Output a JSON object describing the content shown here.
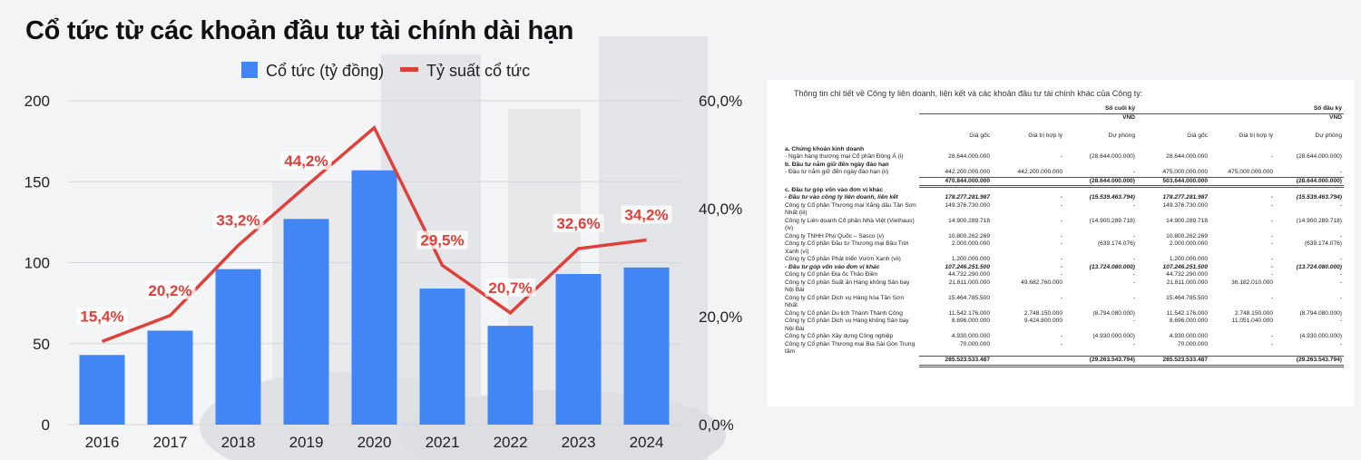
{
  "title": "Cổ tức từ các khoản đầu tư tài chính dài hạn",
  "legend": {
    "bar": "Cổ tức (tỷ đồng)",
    "line": "Tỷ suất cổ tức"
  },
  "colors": {
    "bar": "#4285f4",
    "line": "#e0403a",
    "label": "#e0403a"
  },
  "chart_data": {
    "type": "bar",
    "categories": [
      "2016",
      "2017",
      "2018",
      "2019",
      "2020",
      "2021",
      "2022",
      "2023",
      "2024"
    ],
    "series": [
      {
        "name": "Cổ tức (tỷ đồng)",
        "type": "bar",
        "axis": "left",
        "values": [
          43,
          58,
          96,
          127,
          157,
          84,
          61,
          93,
          97
        ]
      },
      {
        "name": "Tỷ suất cổ tức",
        "type": "line",
        "axis": "right",
        "values": [
          15.4,
          20.2,
          33.2,
          44.2,
          55.0,
          29.5,
          20.7,
          32.6,
          34.2
        ],
        "labels": [
          "15,4%",
          "20,2%",
          "33,2%",
          "44,2%",
          null,
          "29,5%",
          "20,7%",
          "32,6%",
          "34,2%"
        ]
      }
    ],
    "y_left": {
      "ylim": [
        0,
        200
      ],
      "ticks": [
        "0",
        "50",
        "100",
        "150",
        "200"
      ],
      "tick_values": [
        0,
        50,
        100,
        150,
        200
      ]
    },
    "y_right": {
      "ylim": [
        0,
        60
      ],
      "ticks": [
        "0,0%",
        "20,0%",
        "40,0%",
        "60,0%"
      ],
      "tick_values": [
        0,
        20,
        40,
        60
      ]
    },
    "legend_position": "top"
  },
  "doc": {
    "intro": "Thông tin chi tiết về Công ty liên doanh, liên kết và các khoản đầu tư tài chính khác của Công ty:",
    "period_end": "Số cuối kỳ",
    "period_start": "Số đầu kỳ",
    "unit": "VND",
    "col_cost": "Giá gốc",
    "col_fair": "Giá trị hợp lý",
    "col_prov": "Dự phòng",
    "rows": [
      {
        "label": "a. Chứng khoán kinh doanh",
        "style": "b",
        "v": [
          "",
          "",
          "",
          "",
          "",
          ""
        ]
      },
      {
        "label": "- Ngân hàng thương mại Cổ phần Đông Á (i)",
        "style": "",
        "v": [
          "28.644.000.000",
          "-",
          "(28.644.000.000)",
          "28.644.000.000",
          "-",
          "(28.644.000.000)"
        ]
      },
      {
        "label": "b. Đầu tư nắm giữ đến ngày đáo hạn",
        "style": "b",
        "v": [
          "",
          "",
          "",
          "",
          "",
          ""
        ]
      },
      {
        "label": "- Đầu tư nắm giữ đến ngày đáo hạn (ii)",
        "style": "",
        "v": [
          "442.200.000.000",
          "442.200.000.000",
          "-",
          "475.000.000.000",
          "475.000.000.000",
          "-"
        ]
      },
      {
        "label": "",
        "style": "tot",
        "v": [
          "470.844.000.000",
          "",
          "(28.644.000.000)",
          "503.644.000.000",
          "",
          "(28.644.000.000)"
        ]
      },
      {
        "label": "c. Đầu tư góp vốn vào đơn vị khác",
        "style": "b",
        "v": [
          "",
          "",
          "",
          "",
          "",
          ""
        ]
      },
      {
        "label": "- Đầu tư vào công ty liên doanh, liên kết",
        "style": "bi",
        "v": [
          "178.277.281.987",
          "-",
          "(15.539.463.794)",
          "178.277.281.987",
          "-",
          "(15.539.463.794)"
        ]
      },
      {
        "label": "Công ty Cổ phần Thương mại Xăng dầu Tân Sơn Nhất (iii)",
        "style": "",
        "v": [
          "149.376.730.000",
          "-",
          "-",
          "149.376.730.000",
          "-",
          "-"
        ]
      },
      {
        "label": "Công ty Liên doanh Cổ phần Nhà Việt (Viethaus) (iv)",
        "style": "",
        "v": [
          "14.900.289.718",
          "-",
          "(14.900.289.718)",
          "14.900.289.718",
          "-",
          "(14.900.289.718)"
        ]
      },
      {
        "label": "Công ty TNHH Phú Quốc – Sasco (v)",
        "style": "",
        "v": [
          "10.800.262.269",
          "-",
          "-",
          "10.800.262.269",
          "-",
          "-"
        ]
      },
      {
        "label": "Công ty Cổ phần Đầu tư Thương mại Bầu Trời Xanh (vi)",
        "style": "",
        "v": [
          "2.000.000.000",
          "-",
          "(639.174.076)",
          "2.000.000.000",
          "-",
          "(639.174.076)"
        ]
      },
      {
        "label": "Công ty Cổ phần Phát triển Vườn Xanh (vii)",
        "style": "",
        "v": [
          "1.200.000.000",
          "-",
          "-",
          "1.200.000.000",
          "-",
          "-"
        ]
      },
      {
        "label": "- Đầu tư góp vốn vào đơn vị khác",
        "style": "bi",
        "v": [
          "107.246.251.500",
          "-",
          "(13.724.080.000)",
          "107.246.251.500",
          "-",
          "(13.724.080.000)"
        ]
      },
      {
        "label": "Công ty Cổ phần Địa ốc Thảo Điền",
        "style": "",
        "v": [
          "44.732.290.000",
          "-",
          "-",
          "44.732.290.000",
          "-",
          "-"
        ]
      },
      {
        "label": "Công ty Cổ phần Suất ăn Hàng không Sân bay Nội Bài",
        "style": "",
        "v": [
          "21.811.000.000",
          "49.682.760.000",
          "-",
          "21.811.000.000",
          "36.182.010.000",
          "-"
        ]
      },
      {
        "label": "Công ty Cổ phần Dịch vụ Hàng hóa Tân Sơn Nhất",
        "style": "",
        "v": [
          "15.464.785.500",
          "-",
          "-",
          "15.464.785.500",
          "-",
          "-"
        ]
      },
      {
        "label": "Công ty Cổ phần Du lịch Thành Thành Công",
        "style": "",
        "v": [
          "11.542.176.000",
          "2.748.150.000",
          "(8.794.080.000)",
          "11.542.176.000",
          "2.748.150.000",
          "(8.794.080.000)"
        ]
      },
      {
        "label": "Công ty Cổ phần Dịch vụ Hàng không Sân bay Nội Bài",
        "style": "",
        "v": [
          "8.696.000.000",
          "9.424.800.000",
          "-",
          "8.696.000.000",
          "11.051.040.000",
          "-"
        ]
      },
      {
        "label": "Công ty Cổ phần Xây dựng Công nghiệp",
        "style": "",
        "v": [
          "4.930.000.000",
          "-",
          "(4.930.000.000)",
          "4.930.000.000",
          "-",
          "(4.930.000.000)"
        ]
      },
      {
        "label": "Công ty Cổ phần Thương mại Bia Sài Gòn Trung tâm",
        "style": "",
        "v": [
          "70.000.000",
          "-",
          "-",
          "70.000.000",
          "-",
          "-"
        ]
      },
      {
        "label": "",
        "style": "tot",
        "v": [
          "285.523.533.487",
          "",
          "(29.263.543.794)",
          "285.523.533.487",
          "",
          "(29.263.543.794)"
        ]
      }
    ]
  }
}
